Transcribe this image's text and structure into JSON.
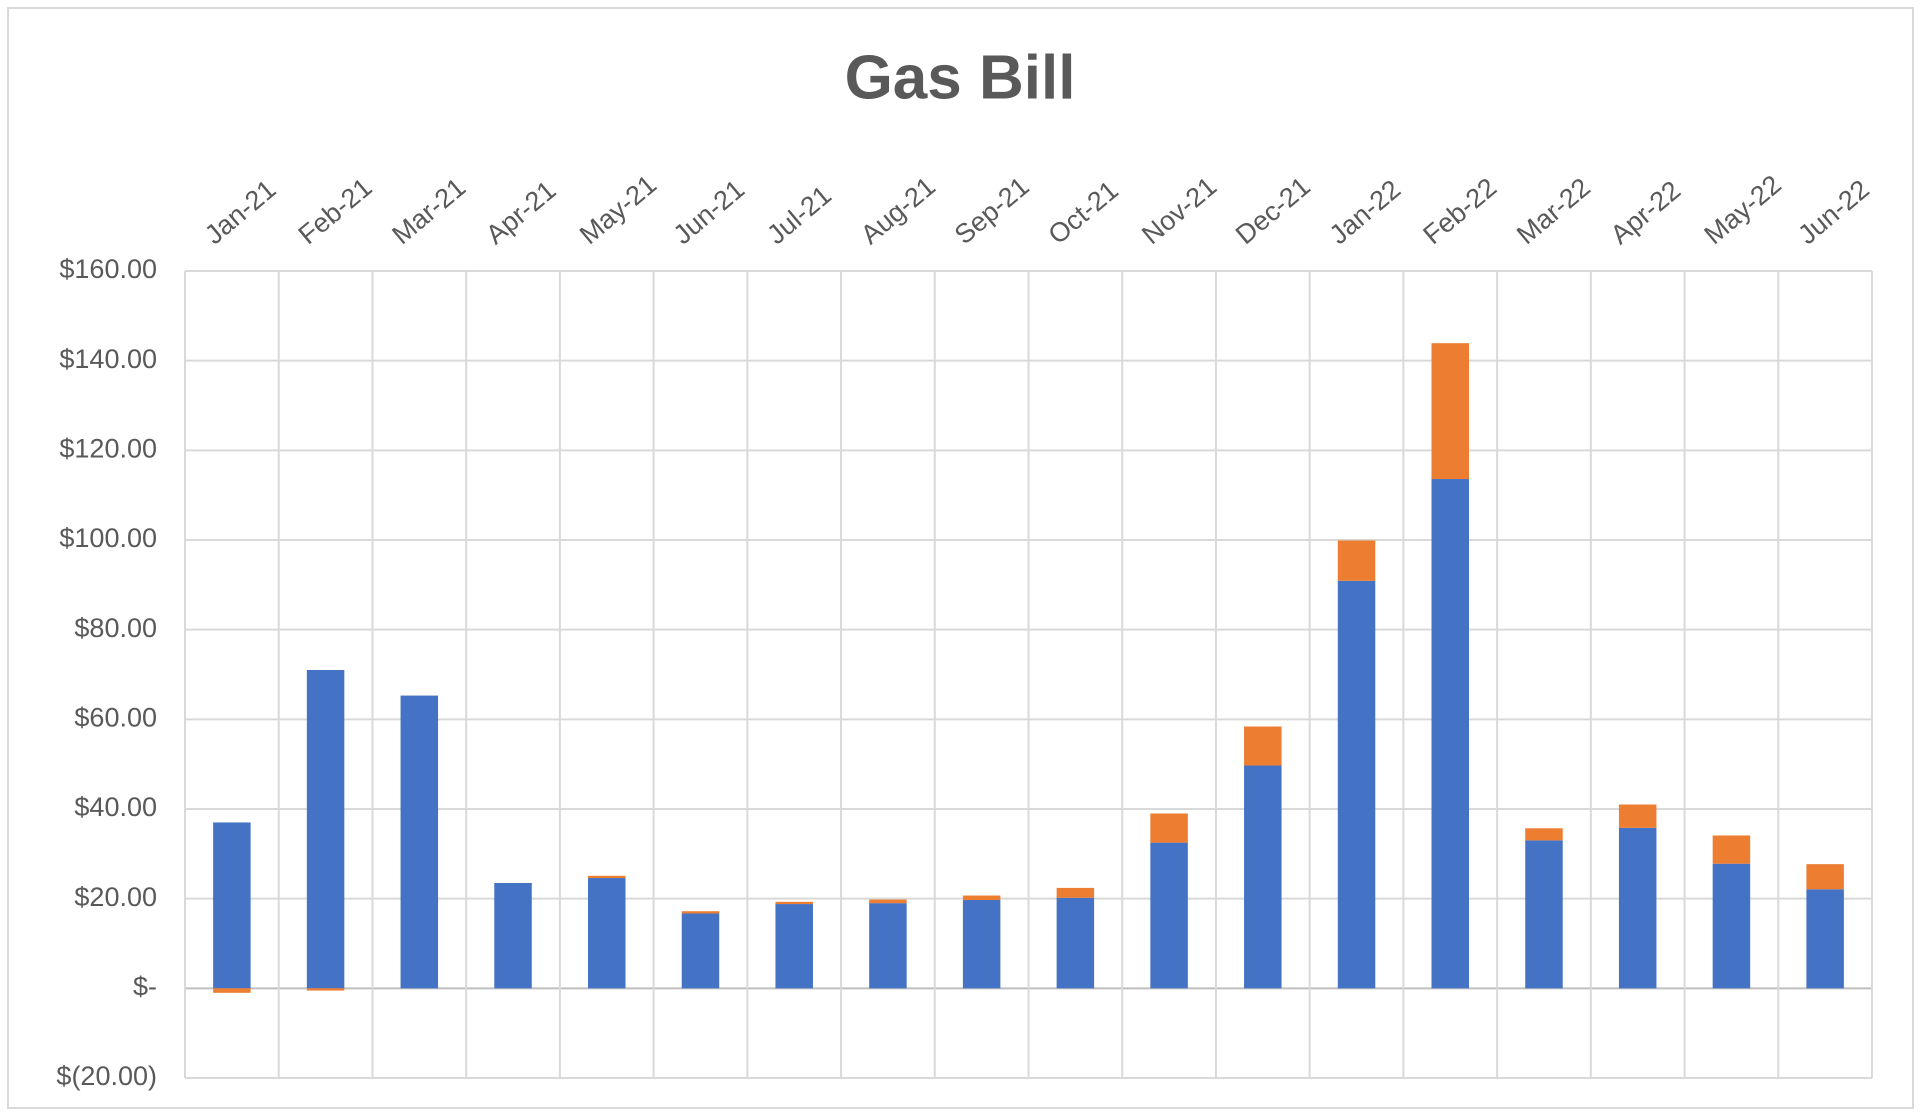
{
  "chart_data": {
    "type": "bar",
    "stacked": true,
    "title": "Gas Bill",
    "categories": [
      "Jan-21",
      "Feb-21",
      "Mar-21",
      "Apr-21",
      "May-21",
      "Jun-21",
      "Jul-21",
      "Aug-21",
      "Sep-21",
      "Oct-21",
      "Nov-21",
      "Dec-21",
      "Jan-22",
      "Feb-22",
      "Mar-22",
      "Apr-22",
      "May-22",
      "Jun-22"
    ],
    "series": [
      {
        "color": "#4472c4",
        "values": [
          37,
          71,
          65.3,
          23.5,
          24.6,
          16.7,
          18.8,
          19,
          19.7,
          20.2,
          32.5,
          49.7,
          90.9,
          113.6,
          33,
          35.8,
          27.8,
          22.1
        ]
      },
      {
        "color": "#ed7d31",
        "values": [
          -1,
          -0.5,
          0,
          0,
          0.5,
          0.5,
          0.5,
          0.8,
          1,
          2.2,
          6.5,
          8.7,
          9,
          30.3,
          2.7,
          5.2,
          6.3,
          5.6
        ]
      }
    ],
    "ylim": [
      -20,
      160
    ],
    "yticks": [
      {
        "value": -20,
        "label": "$(20.00)"
      },
      {
        "value": 0,
        "label": "$-"
      },
      {
        "value": 20,
        "label": "$20.00"
      },
      {
        "value": 40,
        "label": "$40.00"
      },
      {
        "value": 60,
        "label": "$60.00"
      },
      {
        "value": 80,
        "label": "$80.00"
      },
      {
        "value": 100,
        "label": "$100.00"
      },
      {
        "value": 120,
        "label": "$120.00"
      },
      {
        "value": 140,
        "label": "$140.00"
      },
      {
        "value": 160,
        "label": "$160.00"
      }
    ],
    "grid": true
  }
}
